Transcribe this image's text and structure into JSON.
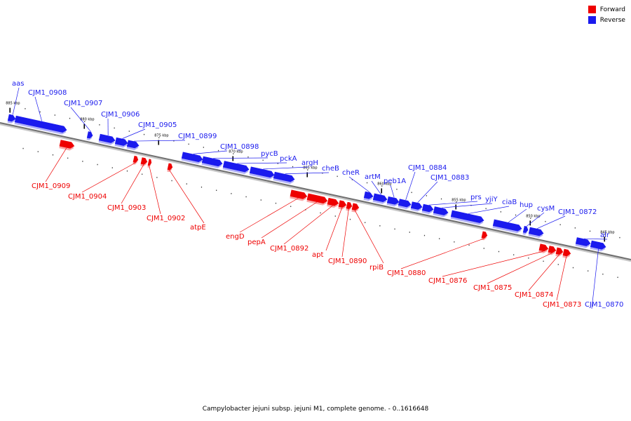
{
  "colors": {
    "forward": "#ee0000",
    "reverse": "#1a1aee",
    "backbone": "#8a8a8a"
  },
  "legend": [
    {
      "label": "Forward",
      "color": "#ee0000"
    },
    {
      "label": "Reverse",
      "color": "#1a1aee"
    }
  ],
  "caption": "Campylobacter jejuni subsp. jejuni M1, complete genome. - 0..1616648",
  "ticks": [
    "885 kbp",
    "880 kbp",
    "875 kbp",
    "870 kbp",
    "865 kbp",
    "860 kbp",
    "855 kbp",
    "850 kbp",
    "845 kbp"
  ],
  "genes": [
    {
      "name": "aas",
      "strand": "reverse"
    },
    {
      "name": "CJM1_0908",
      "strand": "reverse"
    },
    {
      "name": "CJM1_0907",
      "strand": "reverse"
    },
    {
      "name": "CJM1_0906",
      "strand": "reverse"
    },
    {
      "name": "CJM1_0905",
      "strand": "reverse"
    },
    {
      "name": "CJM1_0899",
      "strand": "reverse"
    },
    {
      "name": "CJM1_0898",
      "strand": "reverse"
    },
    {
      "name": "pycB",
      "strand": "reverse"
    },
    {
      "name": "pckA",
      "strand": "reverse"
    },
    {
      "name": "argH",
      "strand": "reverse"
    },
    {
      "name": "cheB",
      "strand": "reverse"
    },
    {
      "name": "cheR",
      "strand": "reverse"
    },
    {
      "name": "artM",
      "strand": "reverse"
    },
    {
      "name": "peb1A",
      "strand": "reverse"
    },
    {
      "name": "CJM1_0884",
      "strand": "reverse"
    },
    {
      "name": "CJM1_0883",
      "strand": "reverse"
    },
    {
      "name": "prs",
      "strand": "reverse"
    },
    {
      "name": "yjiY",
      "strand": "reverse"
    },
    {
      "name": "ciaB",
      "strand": "reverse"
    },
    {
      "name": "hup",
      "strand": "reverse"
    },
    {
      "name": "cysM",
      "strand": "reverse"
    },
    {
      "name": "CJM1_0872",
      "strand": "reverse"
    },
    {
      "name": "alr",
      "strand": "reverse"
    },
    {
      "name": "CJM1_0870",
      "strand": "reverse"
    },
    {
      "name": "CJM1_0909",
      "strand": "forward"
    },
    {
      "name": "CJM1_0904",
      "strand": "forward"
    },
    {
      "name": "CJM1_0903",
      "strand": "forward"
    },
    {
      "name": "CJM1_0902",
      "strand": "forward"
    },
    {
      "name": "atpE",
      "strand": "forward"
    },
    {
      "name": "engD",
      "strand": "forward"
    },
    {
      "name": "pepA",
      "strand": "forward"
    },
    {
      "name": "CJM1_0892",
      "strand": "forward"
    },
    {
      "name": "apt",
      "strand": "forward"
    },
    {
      "name": "CJM1_0890",
      "strand": "forward"
    },
    {
      "name": "rpiB",
      "strand": "forward"
    },
    {
      "name": "CJM1_0880",
      "strand": "forward"
    },
    {
      "name": "CJM1_0876",
      "strand": "forward"
    },
    {
      "name": "CJM1_0875",
      "strand": "forward"
    },
    {
      "name": "CJM1_0874",
      "strand": "forward"
    },
    {
      "name": "CJM1_0873",
      "strand": "forward"
    }
  ]
}
